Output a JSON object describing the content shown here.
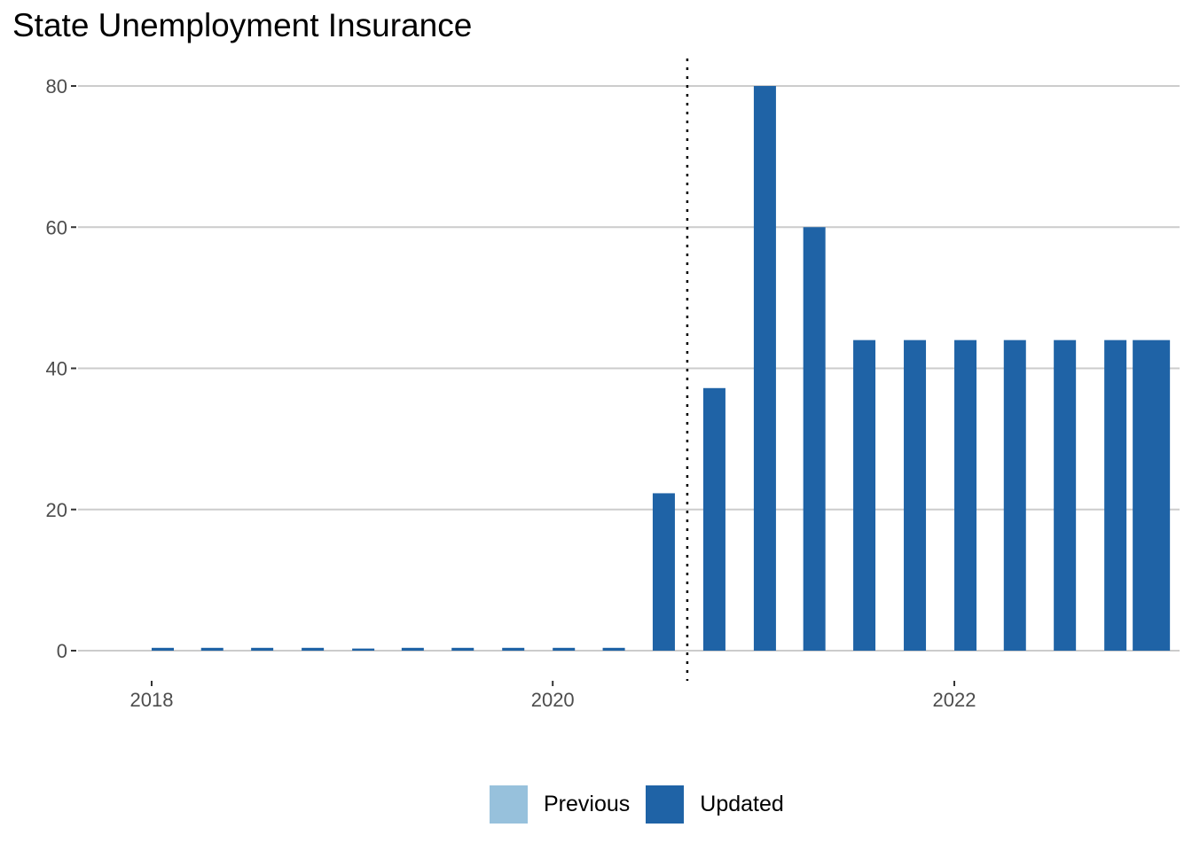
{
  "chart_data": {
    "type": "bar",
    "title": "State Unemployment Insurance",
    "xlabel": "",
    "ylabel": "",
    "ylim": [
      0,
      84
    ],
    "xlim": [
      "2017-08-20",
      "2023-02-15"
    ],
    "yticks": [
      0,
      20,
      40,
      60,
      80
    ],
    "xticks": [
      {
        "label": "2018",
        "date": "2018-01-01"
      },
      {
        "label": "2020",
        "date": "2020-01-01"
      },
      {
        "label": "2022",
        "date": "2022-01-01"
      }
    ],
    "grid": "horizontal",
    "vline": {
      "date": "2020-10-01",
      "style": "dotted"
    },
    "legend_position": "bottom",
    "series": [
      {
        "name": "Previous",
        "color": "#97c1dc",
        "x": [],
        "values": []
      },
      {
        "name": "Updated",
        "color": "#1f63a6",
        "x": [
          "2018-01-01",
          "2018-04-01",
          "2018-07-01",
          "2018-10-01",
          "2019-01-01",
          "2019-04-01",
          "2019-07-01",
          "2019-10-01",
          "2020-01-01",
          "2020-04-01",
          "2020-07-01",
          "2020-10-01",
          "2021-01-01",
          "2021-04-01",
          "2021-07-01",
          "2021-10-01",
          "2022-01-01",
          "2022-04-01",
          "2022-07-01",
          "2022-10-01"
        ],
        "values": [
          0.4,
          0.4,
          0.4,
          0.4,
          0.3,
          0.4,
          0.4,
          0.4,
          0.4,
          0.4,
          22.3,
          37.2,
          80,
          60,
          44,
          44,
          44,
          44,
          44,
          44
        ]
      }
    ]
  }
}
